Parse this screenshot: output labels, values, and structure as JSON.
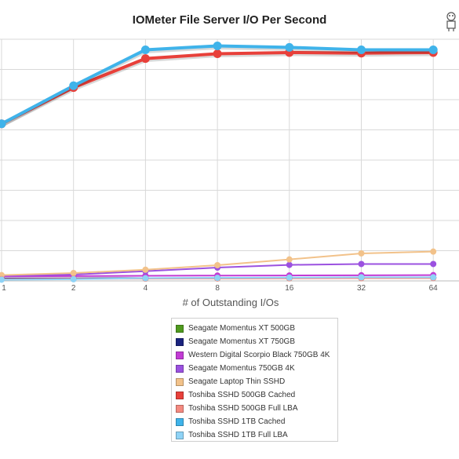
{
  "chart_data": {
    "type": "line",
    "title": "IOMeter File Server I/O Per Second",
    "xlabel": "# of Outstanding I/Os",
    "ylabel": "",
    "categories": [
      "1",
      "2",
      "4",
      "8",
      "16",
      "32",
      "64"
    ],
    "ylim": [
      0,
      8000
    ],
    "grid": true,
    "legend_position": "bottom",
    "series": [
      {
        "name": "Seagate Momentus XT 500GB",
        "color": "#4f9a1e",
        "values": [
          70,
          75,
          80,
          85,
          90,
          95,
          100
        ]
      },
      {
        "name": "Seagate Momentus XT 750GB",
        "color": "#1a237e",
        "values": [
          80,
          85,
          90,
          95,
          100,
          105,
          110
        ]
      },
      {
        "name": "Western Digital Scorpio Black 750GB 4K",
        "color": "#c23bd4",
        "values": [
          150,
          160,
          170,
          175,
          180,
          185,
          190
        ]
      },
      {
        "name": "Seagate Momentus 750GB 4K",
        "color": "#9b51e0",
        "values": [
          170,
          210,
          320,
          440,
          530,
          560,
          560
        ]
      },
      {
        "name": "Seagate Laptop Thin SSHD",
        "color": "#f2c28a",
        "values": [
          190,
          260,
          370,
          520,
          710,
          910,
          970
        ]
      },
      {
        "name": "Toshiba SSHD 500GB Cached",
        "color": "#e8403a",
        "values": [
          5200,
          6400,
          7360,
          7520,
          7560,
          7540,
          7560
        ]
      },
      {
        "name": "Toshiba SSHD 500GB Full LBA",
        "color": "#f48a80",
        "values": [
          60,
          70,
          75,
          80,
          85,
          90,
          95
        ]
      },
      {
        "name": "Toshiba SSHD 1TB Cached",
        "color": "#3fb3ea",
        "values": [
          5200,
          6460,
          7650,
          7780,
          7730,
          7650,
          7650
        ]
      },
      {
        "name": "Toshiba SSHD 1TB Full LBA",
        "color": "#8fd3f6",
        "values": [
          40,
          55,
          90,
          100,
          110,
          120,
          120
        ]
      }
    ]
  },
  "logo_icon": "mascot-figure-icon"
}
